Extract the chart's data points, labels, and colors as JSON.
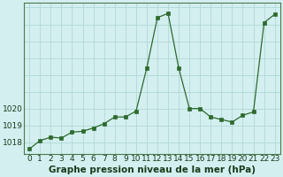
{
  "x": [
    0,
    1,
    2,
    3,
    4,
    5,
    6,
    7,
    8,
    9,
    10,
    11,
    12,
    13,
    14,
    15,
    16,
    17,
    18,
    19,
    20,
    21,
    22,
    23
  ],
  "y": [
    1017.6,
    1018.1,
    1018.3,
    1018.25,
    1018.6,
    1018.65,
    1018.85,
    1019.1,
    1019.5,
    1019.5,
    1019.85,
    1022.4,
    1025.4,
    1025.65,
    1022.4,
    1020.0,
    1020.0,
    1019.5,
    1019.35,
    1019.2,
    1019.6,
    1019.8,
    1025.1,
    1025.6
  ],
  "line_color": "#2d6a2d",
  "marker_color": "#2d6a2d",
  "bg_color": "#d4eff0",
  "grid_color": "#b0d8d8",
  "xlabel": "Graphe pression niveau de la mer (hPa)",
  "ylim_min": 1017.3,
  "ylim_max": 1026.3,
  "yticks": [
    1018,
    1019,
    1020
  ],
  "xticks": [
    0,
    1,
    2,
    3,
    4,
    5,
    6,
    7,
    8,
    9,
    10,
    11,
    12,
    13,
    14,
    15,
    16,
    17,
    18,
    19,
    20,
    21,
    22,
    23
  ],
  "xlabel_fontsize": 7.5,
  "tick_fontsize": 6.5
}
